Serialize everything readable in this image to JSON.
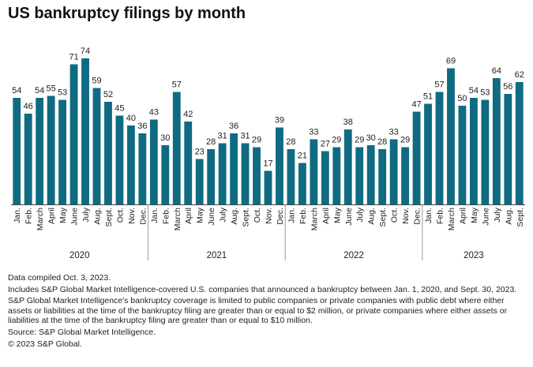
{
  "chart_data": {
    "type": "bar",
    "title": "US bankruptcy filings by month",
    "xlabel": "",
    "ylabel": "",
    "ylim": [
      0,
      80
    ],
    "grid": false,
    "color": "#0f6b82",
    "categories": [
      "Jan.",
      "Feb.",
      "March",
      "April",
      "May",
      "June",
      "July",
      "Aug.",
      "Sept.",
      "Oct.",
      "Nov.",
      "Dec.",
      "Jan.",
      "Feb.",
      "March",
      "April",
      "May",
      "June",
      "July",
      "Aug.",
      "Sept.",
      "Oct.",
      "Nov.",
      "Dec.",
      "Jan.",
      "Feb.",
      "March",
      "April",
      "May",
      "June",
      "July",
      "Aug.",
      "Sept.",
      "Oct.",
      "Nov.",
      "Dec.",
      "Jan.",
      "Feb.",
      "March",
      "April",
      "May",
      "June",
      "July",
      "Aug.",
      "Sept."
    ],
    "values": [
      54,
      46,
      54,
      55,
      53,
      71,
      74,
      59,
      52,
      45,
      40,
      36,
      43,
      30,
      57,
      42,
      23,
      28,
      31,
      36,
      31,
      29,
      17,
      39,
      28,
      21,
      33,
      27,
      29,
      38,
      29,
      30,
      28,
      33,
      29,
      47,
      51,
      57,
      69,
      50,
      54,
      53,
      64,
      56,
      62
    ],
    "groups": [
      {
        "label": "2020",
        "count": 12
      },
      {
        "label": "2021",
        "count": 12
      },
      {
        "label": "2022",
        "count": 12
      },
      {
        "label": "2023",
        "count": 9
      }
    ]
  },
  "notes": {
    "compiled": "Data compiled Oct. 3, 2023.",
    "includes": "Includes S&P Global Market Intelligence-covered U.S. companies that announced a bankruptcy between Jan. 1, 2020, and Sept. 30, 2023.",
    "coverage": "S&P Global Market Intelligence's bankruptcy coverage is limited to public companies or private companies with public debt where either assets or liabilities at the time of the bankruptcy filing are greater than or equal to $2 million, or private companies where either assets or liabilities at the time of the bankruptcy filing are greater than or equal to $10 million.",
    "source": "Source: S&P Global Market Intelligence.",
    "copyright": "© 2023 S&P Global."
  }
}
